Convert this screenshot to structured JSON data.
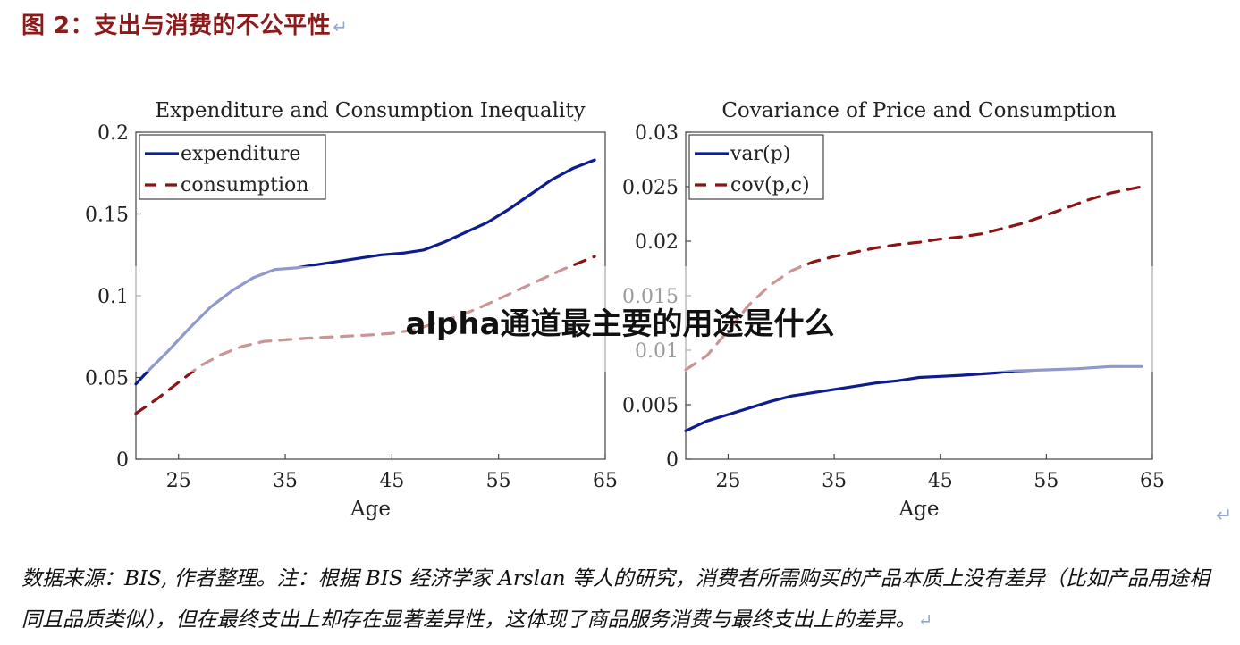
{
  "figure": {
    "title": "图 2：支出与消费的不公平性",
    "return_mark": "↵"
  },
  "overlay_text": "alpha通道最主要的用途是什么",
  "footnote": "数据来源：BIS, 作者整理。注：根据 BIS 经济学家 Arslan 等人的研究，消费者所需购买的产品本质上没有差异（比如产品用途相同且品质类似），但在最终支出上却存在显著差异性，这体现了商品服务消费与最终支出上的差异。",
  "colors": {
    "expenditure": "#0d1d8f",
    "consumption": "#8b1414",
    "title": "#8b1a1a"
  },
  "chart_data": [
    {
      "type": "line",
      "title": "Expenditure and Consumption Inequality",
      "xlabel": "Age",
      "ylabel": "",
      "xlim": [
        21,
        65
      ],
      "ylim": [
        0,
        0.2
      ],
      "xticks": [
        "25",
        "35",
        "45",
        "55",
        "65"
      ],
      "xtick_values": [
        25,
        35,
        45,
        55,
        65
      ],
      "yticks": [
        "0",
        "0.05",
        "0.1",
        "0.15",
        "0.2"
      ],
      "ytick_values": [
        0,
        0.05,
        0.1,
        0.15,
        0.2
      ],
      "legend_position": "top-left",
      "series": [
        {
          "name": "expenditure",
          "style": "solid",
          "color": "#0d1d8f",
          "x": [
            21,
            22,
            24,
            26,
            28,
            30,
            32,
            34,
            36,
            38,
            40,
            42,
            44,
            46,
            48,
            50,
            52,
            54,
            56,
            58,
            60,
            62,
            64
          ],
          "y": [
            0.046,
            0.053,
            0.066,
            0.08,
            0.093,
            0.103,
            0.111,
            0.116,
            0.117,
            0.119,
            0.121,
            0.123,
            0.125,
            0.126,
            0.128,
            0.133,
            0.139,
            0.145,
            0.153,
            0.162,
            0.171,
            0.178,
            0.183
          ]
        },
        {
          "name": "consumption",
          "style": "dashed",
          "color": "#8b1414",
          "x": [
            21,
            23,
            25,
            27,
            29,
            31,
            33,
            35,
            37,
            40,
            43,
            45,
            47,
            49,
            51,
            53,
            55,
            57,
            59,
            61,
            64
          ],
          "y": [
            0.028,
            0.037,
            0.047,
            0.057,
            0.064,
            0.069,
            0.072,
            0.073,
            0.074,
            0.075,
            0.076,
            0.077,
            0.079,
            0.083,
            0.087,
            0.092,
            0.098,
            0.104,
            0.11,
            0.116,
            0.124
          ]
        }
      ]
    },
    {
      "type": "line",
      "title": "Covariance of Price and Consumption",
      "xlabel": "Age",
      "ylabel": "",
      "xlim": [
        21,
        65
      ],
      "ylim": [
        0,
        0.03
      ],
      "xticks": [
        "25",
        "35",
        "45",
        "55",
        "65"
      ],
      "xtick_values": [
        25,
        35,
        45,
        55,
        65
      ],
      "yticks": [
        "0",
        "0.005",
        "0.01",
        "0.015",
        "0.02",
        "0.025",
        "0.03"
      ],
      "ytick_values": [
        0,
        0.005,
        0.01,
        0.015,
        0.02,
        0.025,
        0.03
      ],
      "legend_position": "top-left",
      "series": [
        {
          "name": "var(p)",
          "style": "solid",
          "color": "#0d1d8f",
          "x": [
            21,
            23,
            25,
            27,
            29,
            31,
            33,
            35,
            37,
            39,
            41,
            43,
            45,
            47,
            50,
            52,
            55,
            58,
            61,
            64
          ],
          "y": [
            0.0026,
            0.0035,
            0.0041,
            0.0047,
            0.0053,
            0.0058,
            0.0061,
            0.0064,
            0.0067,
            0.007,
            0.0072,
            0.0075,
            0.0076,
            0.0077,
            0.0079,
            0.0081,
            0.0082,
            0.0083,
            0.0085,
            0.0085
          ]
        },
        {
          "name": "cov(p,c)",
          "style": "dashed",
          "color": "#8b1414",
          "x": [
            21,
            23,
            25,
            27,
            29,
            31,
            33,
            35,
            37,
            39,
            41,
            43,
            45,
            47,
            49,
            51,
            53,
            55,
            57,
            59,
            61,
            64
          ],
          "y": [
            0.0082,
            0.0095,
            0.0118,
            0.0142,
            0.016,
            0.0173,
            0.0181,
            0.0186,
            0.019,
            0.0194,
            0.0197,
            0.0199,
            0.0202,
            0.0204,
            0.0207,
            0.0212,
            0.0217,
            0.0224,
            0.0231,
            0.0238,
            0.0244,
            0.025
          ]
        }
      ]
    }
  ]
}
